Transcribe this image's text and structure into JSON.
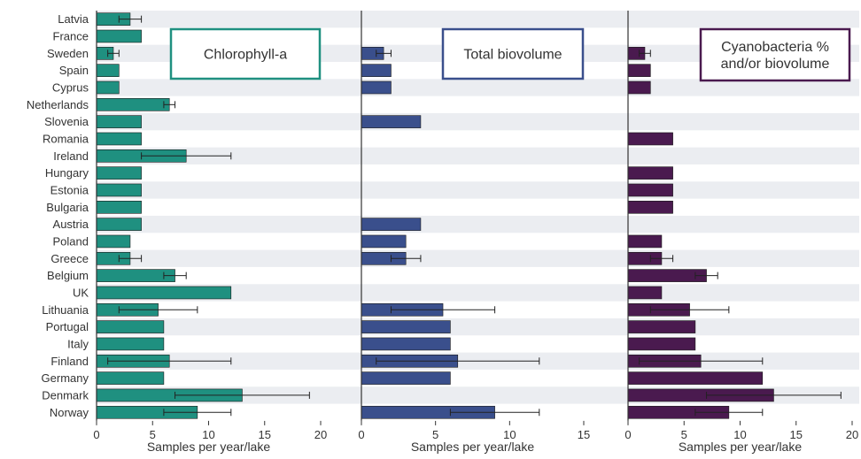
{
  "chart_data": {
    "type": "bar",
    "orientation": "horizontal",
    "categories": [
      "Latvia",
      "France",
      "Sweden",
      "Spain",
      "Cyprus",
      "Netherlands",
      "Slovenia",
      "Romania",
      "Ireland",
      "Hungary",
      "Estonia",
      "Bulgaria",
      "Austria",
      "Poland",
      "Greece",
      "Belgium",
      "UK",
      "Lithuania",
      "Portugal",
      "Italy",
      "Finland",
      "Germany",
      "Denmark",
      "Norway"
    ],
    "grid": "alternating row bands",
    "panels": [
      {
        "title": "Chlorophyll-a",
        "xlabel": "Samples per year/lake",
        "xlim": [
          0,
          20
        ],
        "xticks": [
          0,
          5,
          10,
          15,
          20
        ],
        "color": "#1f9080",
        "values": [
          3,
          4,
          1.5,
          2,
          2,
          6.5,
          4,
          4,
          8,
          4,
          4,
          4,
          4,
          3,
          3,
          7,
          12,
          5.5,
          6,
          6,
          6.5,
          6,
          13,
          9
        ],
        "error_low": [
          2,
          null,
          1,
          null,
          null,
          6,
          null,
          null,
          4,
          null,
          null,
          null,
          null,
          null,
          2,
          6,
          null,
          2,
          null,
          null,
          1,
          null,
          7,
          6
        ],
        "error_high": [
          4,
          null,
          2,
          null,
          null,
          7,
          null,
          null,
          12,
          null,
          null,
          null,
          null,
          null,
          4,
          8,
          null,
          9,
          null,
          null,
          12,
          null,
          19,
          12
        ]
      },
      {
        "title": "Total biovolume",
        "xlabel": "Samples per year/lake",
        "xlim": [
          0,
          15
        ],
        "xticks": [
          0,
          5,
          10,
          15
        ],
        "color": "#3a4f8c",
        "values": [
          0,
          0,
          1.5,
          2,
          2,
          0,
          4,
          0,
          0,
          0,
          0,
          0,
          4,
          3,
          3,
          0,
          0,
          5.5,
          6,
          6,
          6.5,
          6,
          0,
          9
        ],
        "error_low": [
          null,
          null,
          1,
          null,
          null,
          null,
          null,
          null,
          null,
          null,
          null,
          null,
          null,
          null,
          2,
          null,
          null,
          2,
          null,
          null,
          1,
          null,
          null,
          6
        ],
        "error_high": [
          null,
          null,
          2,
          null,
          null,
          null,
          null,
          null,
          null,
          null,
          null,
          null,
          null,
          null,
          4,
          null,
          null,
          9,
          null,
          null,
          12,
          null,
          null,
          12
        ]
      },
      {
        "title": "Cyanobacteria % and/or biovolume",
        "xlabel": "Samples per year/lake",
        "xlim": [
          0,
          20
        ],
        "xticks": [
          0,
          5,
          10,
          15,
          20
        ],
        "color": "#4a1a4f",
        "values": [
          0,
          0,
          1.5,
          2,
          2,
          0,
          0,
          4,
          0,
          4,
          4,
          4,
          0,
          3,
          3,
          7,
          3,
          5.5,
          6,
          6,
          6.5,
          12,
          13,
          9
        ],
        "error_low": [
          null,
          null,
          1,
          null,
          null,
          null,
          null,
          null,
          null,
          null,
          null,
          null,
          null,
          null,
          2,
          6,
          null,
          2,
          null,
          null,
          1,
          null,
          7,
          6
        ],
        "error_high": [
          null,
          null,
          2,
          null,
          null,
          null,
          null,
          null,
          null,
          null,
          null,
          null,
          null,
          null,
          4,
          8,
          null,
          9,
          null,
          null,
          12,
          null,
          19,
          12
        ]
      }
    ]
  },
  "colors": {
    "band": "#ebedf1",
    "axis": "#333333",
    "error_bar": "#222222"
  }
}
